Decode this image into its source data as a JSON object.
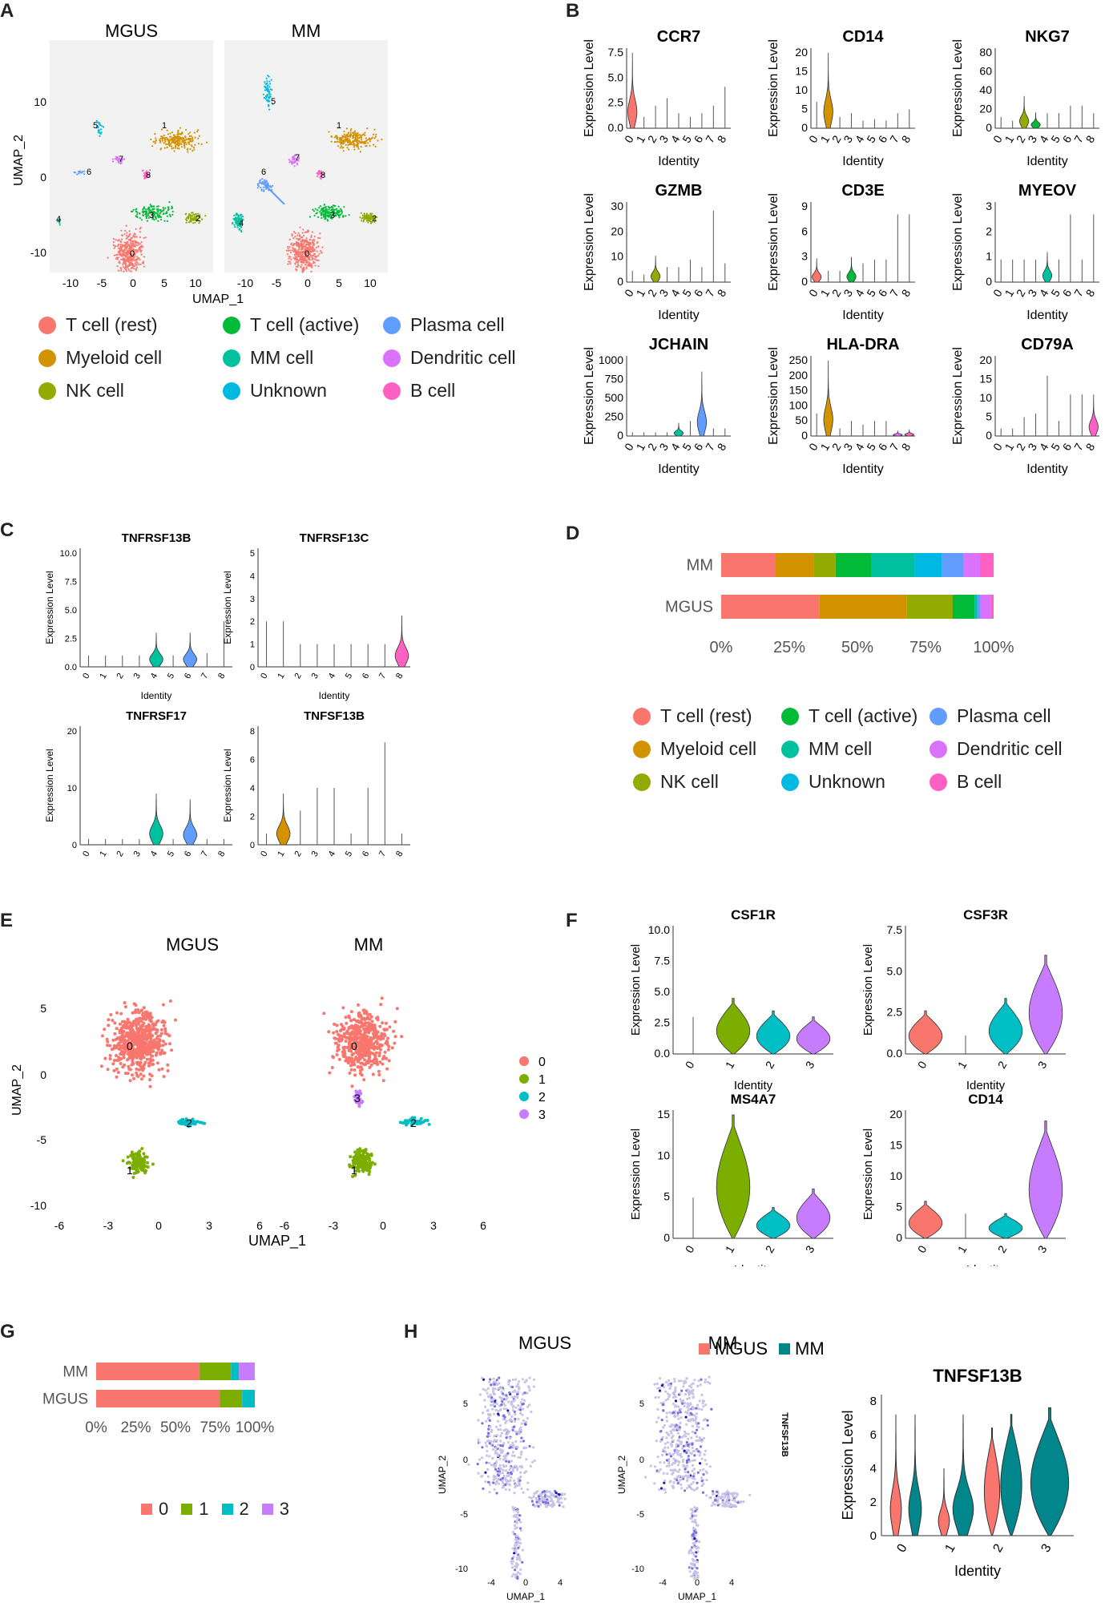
{
  "panels": {
    "A": {
      "label": "A",
      "titles": [
        "MGUS",
        "MM"
      ],
      "xlabel": "UMAP_1",
      "ylabel": "UMAP_2",
      "xticks": [
        "-10",
        "-5",
        "0",
        "5",
        "10"
      ],
      "yticks": [
        "10",
        "0",
        "-10"
      ],
      "legend": [
        {
          "name": "T cell (rest)",
          "color": "#F8766D"
        },
        {
          "name": "T cell (active)",
          "color": "#00BA38"
        },
        {
          "name": "Plasma cell",
          "color": "#619CFF"
        },
        {
          "name": "Myeloid cell",
          "color": "#D39200"
        },
        {
          "name": "MM cell",
          "color": "#00C19F"
        },
        {
          "name": "Dendritic cell",
          "color": "#DB72FB"
        },
        {
          "name": "NK cell",
          "color": "#93AA00"
        },
        {
          "name": "Unknown",
          "color": "#00B9E3"
        },
        {
          "name": "B cell",
          "color": "#FF61C3"
        }
      ]
    },
    "B": {
      "label": "B",
      "xlabel": "Identity",
      "ylabel": "Expression Level",
      "genes": [
        {
          "name": "CCR7",
          "ticks": [
            "7.5",
            "5.0",
            "2.5",
            "0.0"
          ]
        },
        {
          "name": "CD14",
          "ticks": [
            "20",
            "15",
            "10",
            "5",
            "0"
          ]
        },
        {
          "name": "NKG7",
          "ticks": [
            "80",
            "60",
            "40",
            "20",
            "0"
          ]
        },
        {
          "name": "GZMB",
          "ticks": [
            "30",
            "20",
            "10",
            "0"
          ]
        },
        {
          "name": "CD3E",
          "ticks": [
            "9",
            "6",
            "3",
            "0"
          ]
        },
        {
          "name": "MYEOV",
          "ticks": [
            "3",
            "2",
            "1",
            "0"
          ]
        },
        {
          "name": "JCHAIN",
          "ticks": [
            "1000",
            "750",
            "500",
            "250",
            "0"
          ]
        },
        {
          "name": "HLA-DRA",
          "ticks": [
            "250",
            "200",
            "150",
            "100",
            "50",
            "0"
          ]
        },
        {
          "name": "CD79A",
          "ticks": [
            "20",
            "15",
            "10",
            "5",
            "0"
          ]
        }
      ],
      "identities": [
        "0",
        "1",
        "2",
        "3",
        "4",
        "5",
        "6",
        "7",
        "8"
      ]
    },
    "C": {
      "label": "C",
      "xlabel": "Identity",
      "ylabel": "Expression Level",
      "genes": [
        {
          "name": "TNFRSF13B",
          "ticks": [
            "10.0",
            "7.5",
            "5.0",
            "2.5",
            "0.0"
          ]
        },
        {
          "name": "TNFRSF13C",
          "ticks": [
            "5",
            "4",
            "3",
            "2",
            "1",
            "0"
          ]
        },
        {
          "name": "TNFRSF17",
          "ticks": [
            "20",
            "10",
            "0"
          ]
        },
        {
          "name": "TNFSF13B",
          "ticks": [
            "8",
            "6",
            "4",
            "2",
            "0"
          ]
        }
      ]
    },
    "D": {
      "label": "D",
      "chart_data": {
        "type": "bar",
        "orientation": "horizontal-stacked",
        "categories": [
          "MM",
          "MGUS"
        ],
        "xticks": [
          "0%",
          "25%",
          "50%",
          "75%",
          "100%"
        ],
        "series": [
          {
            "name": "T cell (rest)",
            "color": "#F8766D",
            "values": [
              20,
              36
            ]
          },
          {
            "name": "Myeloid cell",
            "color": "#D39200",
            "values": [
              14,
              32
            ]
          },
          {
            "name": "NK cell",
            "color": "#93AA00",
            "values": [
              8,
              17
            ]
          },
          {
            "name": "T cell (active)",
            "color": "#00BA38",
            "values": [
              13,
              8
            ]
          },
          {
            "name": "MM cell",
            "color": "#00C19F",
            "values": [
              16,
              1
            ]
          },
          {
            "name": "Unknown",
            "color": "#00B9E3",
            "values": [
              10,
              0
            ]
          },
          {
            "name": "Plasma cell",
            "color": "#619CFF",
            "values": [
              8,
              1
            ]
          },
          {
            "name": "Dendritic cell",
            "color": "#DB72FB",
            "values": [
              6,
              4
            ]
          },
          {
            "name": "B cell",
            "color": "#FF61C3",
            "values": [
              5,
              1
            ]
          }
        ]
      }
    },
    "E": {
      "label": "E",
      "titles": [
        "MGUS",
        "MM"
      ],
      "xlabel": "UMAP_1",
      "ylabel": "UMAP_2",
      "xticks": [
        "-6",
        "-3",
        "0",
        "3",
        "6"
      ],
      "yticks": [
        "5",
        "0",
        "-5",
        "-10"
      ],
      "legend": [
        {
          "name": "0",
          "color": "#F8766D"
        },
        {
          "name": "1",
          "color": "#7CAE00"
        },
        {
          "name": "2",
          "color": "#00BFC4"
        },
        {
          "name": "3",
          "color": "#C77CFF"
        }
      ]
    },
    "F": {
      "label": "F",
      "xlabel": "Identity",
      "ylabel": "Expression Level",
      "genes": [
        {
          "name": "CSF1R",
          "ticks": [
            "10.0",
            "7.5",
            "5.0",
            "2.5",
            "0.0"
          ]
        },
        {
          "name": "CSF3R",
          "ticks": [
            "7.5",
            "5.0",
            "2.5",
            "0.0"
          ]
        },
        {
          "name": "MS4A7",
          "ticks": [
            "15",
            "10",
            "5",
            "0"
          ]
        },
        {
          "name": "CD14",
          "ticks": [
            "20",
            "15",
            "10",
            "5",
            "0"
          ]
        }
      ]
    },
    "G": {
      "label": "G",
      "chart_data": {
        "type": "bar",
        "orientation": "horizontal-stacked",
        "categories": [
          "MM",
          "MGUS"
        ],
        "xticks": [
          "0%",
          "25%",
          "50%",
          "75%",
          "100%"
        ],
        "series": [
          {
            "name": "0",
            "color": "#F8766D",
            "values": [
              65,
              78
            ]
          },
          {
            "name": "1",
            "color": "#7CAE00",
            "values": [
              20,
              14
            ]
          },
          {
            "name": "2",
            "color": "#00BFC4",
            "values": [
              5,
              8
            ]
          },
          {
            "name": "3",
            "color": "#C77CFF",
            "values": [
              10,
              0
            ]
          }
        ]
      }
    },
    "H": {
      "label": "H",
      "titles": [
        "MGUS",
        "MM"
      ],
      "side_label": "TNFSF13B",
      "xlabel": "UMAP_1",
      "ylabel": "UMAP_2",
      "xticks": [
        "-4",
        "0",
        "4"
      ],
      "yticks": [
        "5",
        "0",
        "-5",
        "-10"
      ],
      "violin_title": "TNFSF13B",
      "violin_ylabel": "Expression Level",
      "violin_xlabel": "Identity",
      "violin_ticks": [
        "8",
        "6",
        "4",
        "2",
        "0"
      ],
      "violin_identities": [
        "0",
        "1",
        "2",
        "3"
      ],
      "legend": [
        {
          "name": "MGUS",
          "color": "#F8766D"
        },
        {
          "name": "MM",
          "color": "#00868B"
        }
      ]
    }
  }
}
